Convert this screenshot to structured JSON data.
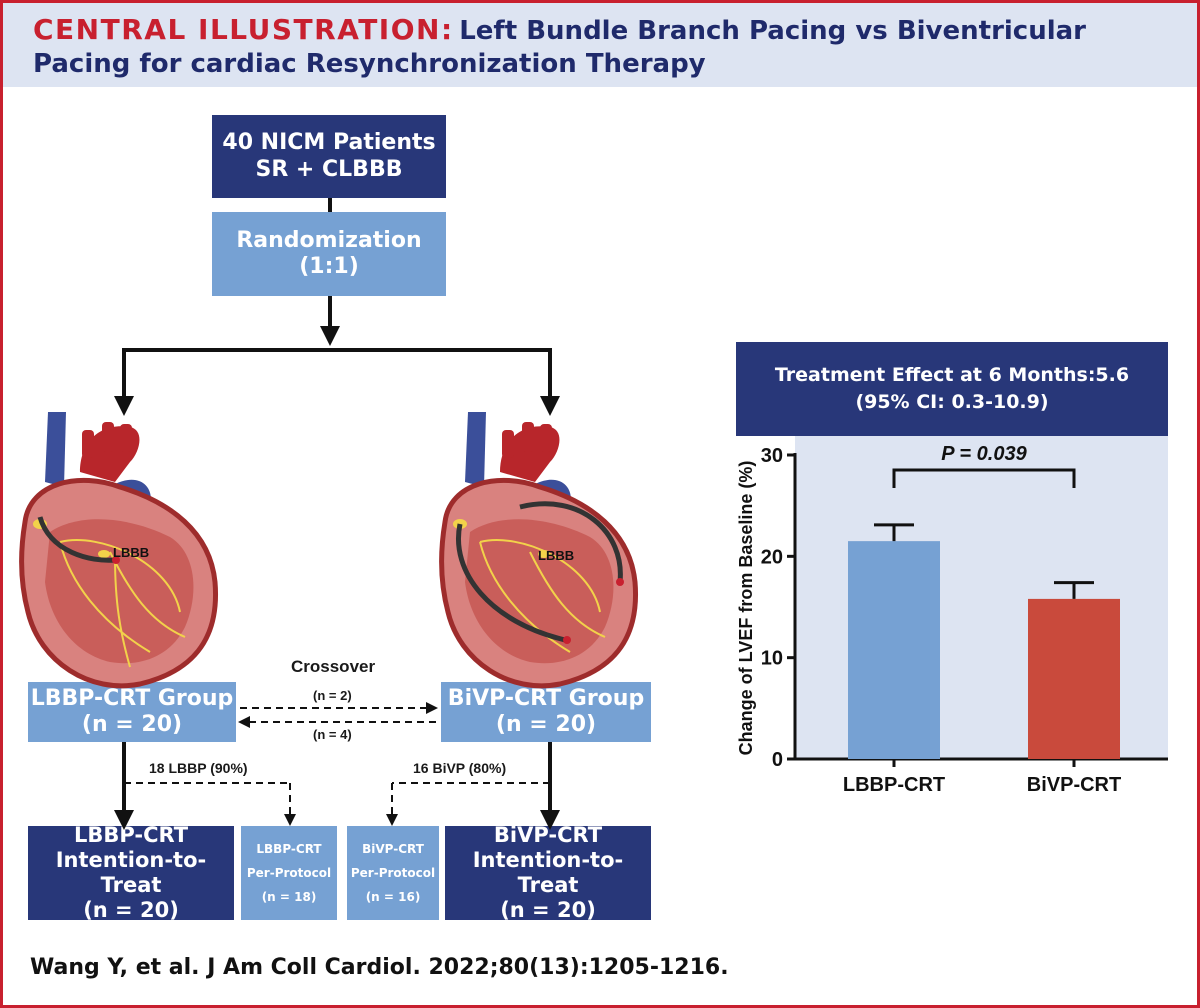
{
  "header": {
    "kicker": "CENTRAL ILLUSTRATION:",
    "title_line1": "Left Bundle Branch Pacing vs Biventricular",
    "title_line2": "Pacing for cardiac Resynchronization Therapy"
  },
  "flow": {
    "patients_line1": "40 NICM Patients",
    "patients_line2": "SR + CLBBB",
    "randomization": "Randomization (1:1)",
    "heart_label_left": "LBBB",
    "heart_label_right": "LBBB",
    "crossover": "Crossover",
    "cross_top": "(n = 2)",
    "cross_bottom": "(n = 4)",
    "lbbp_group_line1": "LBBP-CRT Group",
    "lbbp_group_line2": "(n = 20)",
    "bivp_group_line1": "BiVP-CRT Group",
    "bivp_group_line2": "(n = 20)",
    "lbbp_pp_label": "18 LBBP (90%)",
    "bivp_pp_label": "16 BiVP (80%)",
    "lbbp_itt": [
      "LBBP-CRT",
      "Intention-to-Treat",
      "(n = 20)"
    ],
    "lbbp_pp": [
      "LBBP-CRT",
      "Per-Protocol",
      "(n = 18)"
    ],
    "bivp_pp": [
      "BiVP-CRT",
      "Per-Protocol",
      "(n = 16)"
    ],
    "bivp_itt": [
      "BiVP-CRT",
      "Intention-to-Treat",
      "(n = 20)"
    ]
  },
  "effect": {
    "line1": "Treatment Effect at 6  Months:5.6",
    "line2": "(95% CI: 0.3-10.9)"
  },
  "chart_data": {
    "type": "bar",
    "categories": [
      "LBBP-CRT",
      "BiVP-CRT"
    ],
    "values": [
      21.5,
      15.8
    ],
    "error_upper": [
      23.1,
      17.4
    ],
    "colors": [
      "#76a1d3",
      "#c94a3c"
    ],
    "ylabel": "Change of LVEF from Baseline (%)",
    "ylim": [
      0,
      30
    ],
    "yticks": [
      0,
      10,
      20,
      30
    ],
    "annotation": "P = 0.039"
  },
  "citation": "Wang Y, et al. J Am Coll Cardiol. 2022;80(13):1205-1216."
}
